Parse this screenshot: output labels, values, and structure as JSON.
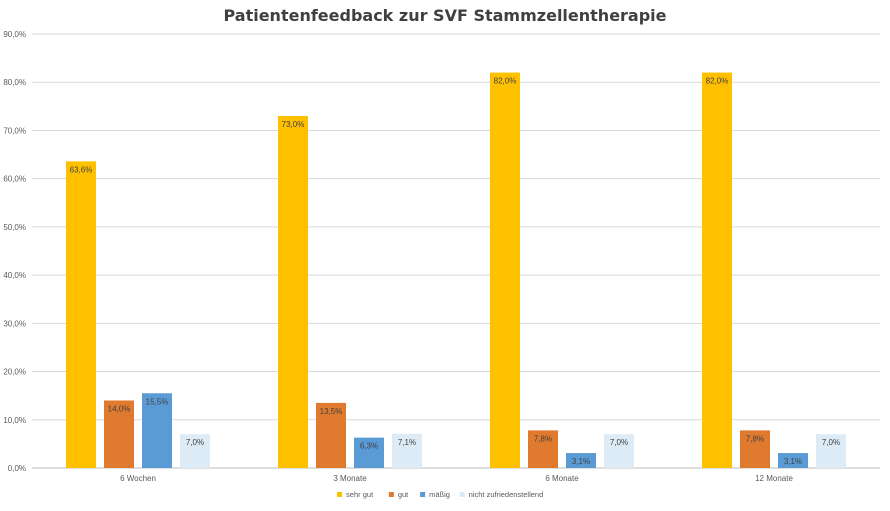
{
  "chart_data": {
    "type": "bar",
    "title": "Patientenfeedback zur SVF Stammzellentherapie",
    "categories": [
      "6 Wochen",
      "3 Monate",
      "6 Monate",
      "12 Monate"
    ],
    "series": [
      {
        "name": "sehr gut",
        "color": "#FFC000",
        "values": [
          63.6,
          73.0,
          82.0,
          82.0
        ],
        "labels": [
          "63,6%",
          "73,0%",
          "82,0%",
          "82,0%"
        ]
      },
      {
        "name": "gut",
        "color": "#E07A2F",
        "values": [
          14.0,
          13.5,
          7.8,
          7.8
        ],
        "labels": [
          "14,0%",
          "13,5%",
          "7,8%",
          "7,8%"
        ]
      },
      {
        "name": "mäßig",
        "color": "#5B9BD5",
        "values": [
          15.5,
          6.3,
          3.1,
          3.1
        ],
        "labels": [
          "15,5%",
          "6,3%",
          "3,1%",
          "3,1%"
        ]
      },
      {
        "name": "nicht zufriedenstellend",
        "color": "#DDEBF7",
        "values": [
          7.0,
          7.1,
          7.0,
          7.0
        ],
        "labels": [
          "7,0%",
          "7,1%",
          "7,0%",
          "7,0%"
        ]
      }
    ],
    "ylim": [
      0,
      90
    ],
    "yticks": [
      0,
      10,
      20,
      30,
      40,
      50,
      60,
      70,
      80,
      90
    ],
    "ytick_labels": [
      "0,0%",
      "10,0%",
      "20,0%",
      "30,0%",
      "40,0%",
      "50,0%",
      "60,0%",
      "70,0%",
      "80,0%",
      "90,0%"
    ],
    "grid": true,
    "legend_position": "bottom"
  }
}
